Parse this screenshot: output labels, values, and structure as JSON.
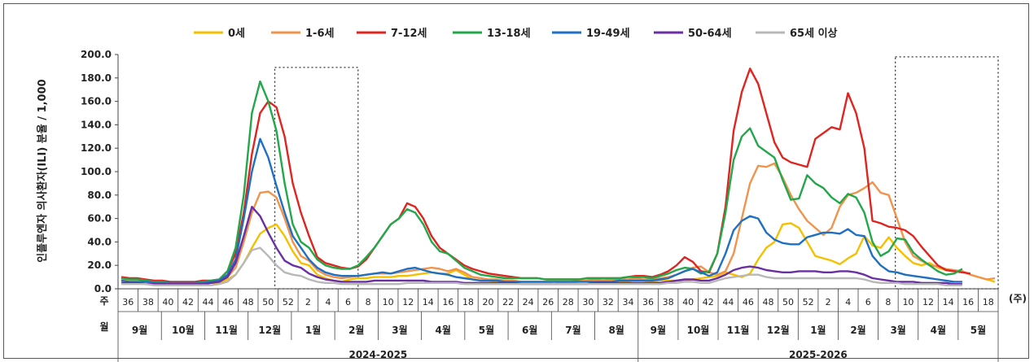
{
  "chart_data": {
    "type": "line",
    "ylabel": "인플루엔자 의사환자(ILI) 분율 / 1,000",
    "ylim": [
      0,
      200
    ],
    "yticks": [
      "0.0",
      "20.0",
      "40.0",
      "60.0",
      "80.0",
      "100.0",
      "120.0",
      "140.0",
      "160.0",
      "180.0",
      "200.0"
    ],
    "x_unit": "(주)",
    "x_row_label": "주",
    "month_row_label": "월",
    "week_labels": [
      "36",
      "38",
      "40",
      "42",
      "44",
      "46",
      "48",
      "50",
      "52",
      "2",
      "4",
      "6",
      "8",
      "10",
      "12",
      "14",
      "16",
      "18",
      "20",
      "22",
      "24",
      "26",
      "28",
      "30",
      "32",
      "34",
      "36",
      "38",
      "40",
      "42",
      "44",
      "46",
      "48",
      "50",
      "52",
      "2",
      "4",
      "6",
      "8",
      "10",
      "12",
      "14",
      "16",
      "18"
    ],
    "months_2024": [
      "9월",
      "10월",
      "11월",
      "12월",
      "1월",
      "2월",
      "3월",
      "4월",
      "5월",
      "6월",
      "7월",
      "8월"
    ],
    "months_2025": [
      "9월",
      "10월",
      "11월",
      "12월",
      "1월",
      "2월",
      "3월",
      "4월",
      "5월"
    ],
    "seasons": [
      "2024-2025",
      "2025-2026"
    ],
    "legend_position": "top",
    "series": [
      {
        "name": "0세",
        "color": "#f5c000",
        "values": [
          8,
          6,
          6,
          5,
          5,
          5,
          4,
          4,
          4,
          4,
          5,
          5,
          5,
          8,
          12,
          22,
          35,
          47,
          52,
          55,
          45,
          32,
          22,
          20,
          12,
          9,
          7,
          6,
          8,
          9,
          9,
          10,
          10,
          10,
          11,
          11,
          12,
          13,
          14,
          13,
          13,
          16,
          12,
          8,
          7,
          7,
          6,
          5,
          5,
          5,
          5,
          5,
          5,
          4,
          5,
          5,
          6,
          6,
          7,
          6,
          7,
          6,
          6,
          8,
          7,
          6,
          7,
          7,
          7,
          7,
          8,
          9,
          10,
          11,
          14,
          12,
          10,
          13,
          25,
          35,
          40,
          55,
          56,
          52,
          40,
          28,
          26,
          24,
          21,
          26,
          30,
          45,
          37,
          35,
          44,
          35,
          28,
          22,
          20,
          22,
          18,
          16,
          15,
          15,
          12,
          10,
          8,
          6
        ]
      },
      {
        "name": "1-6세",
        "color": "#f0944d",
        "values": [
          9,
          8,
          8,
          7,
          6,
          6,
          5,
          5,
          5,
          5,
          5,
          6,
          6,
          10,
          18,
          40,
          65,
          82,
          83,
          78,
          60,
          40,
          28,
          24,
          16,
          12,
          10,
          9,
          10,
          11,
          12,
          13,
          13,
          13,
          14,
          15,
          16,
          17,
          18,
          17,
          15,
          17,
          14,
          10,
          9,
          8,
          8,
          7,
          7,
          6,
          6,
          6,
          6,
          6,
          6,
          6,
          7,
          7,
          8,
          7,
          8,
          8,
          8,
          9,
          8,
          8,
          9,
          10,
          12,
          15,
          18,
          19,
          14,
          12,
          15,
          30,
          60,
          90,
          105,
          104,
          107,
          95,
          80,
          68,
          58,
          52,
          46,
          52,
          70,
          80,
          82,
          86,
          91,
          82,
          80,
          60,
          40,
          28,
          24,
          20,
          19,
          17,
          16,
          15,
          12,
          10,
          8,
          9
        ]
      },
      {
        "name": "7-12세",
        "color": "#e0241f",
        "values": [
          10,
          9,
          9,
          8,
          7,
          7,
          6,
          6,
          6,
          6,
          7,
          7,
          8,
          15,
          30,
          65,
          115,
          150,
          160,
          155,
          130,
          90,
          65,
          45,
          27,
          22,
          20,
          18,
          17,
          19,
          25,
          35,
          45,
          55,
          60,
          73,
          70,
          60,
          45,
          35,
          30,
          25,
          20,
          17,
          15,
          13,
          12,
          11,
          10,
          9,
          9,
          9,
          8,
          8,
          8,
          8,
          8,
          9,
          9,
          9,
          9,
          9,
          10,
          11,
          11,
          10,
          12,
          15,
          20,
          27,
          23,
          15,
          14,
          30,
          70,
          135,
          168,
          188,
          175,
          150,
          125,
          112,
          108,
          106,
          104,
          128,
          133,
          138,
          136,
          167,
          150,
          120,
          58,
          56,
          53,
          52,
          50,
          45,
          36,
          28,
          20,
          16,
          15,
          14,
          13
        ]
      },
      {
        "name": "13-18세",
        "color": "#22a84a",
        "values": [
          9,
          8,
          8,
          7,
          6,
          6,
          5,
          5,
          5,
          5,
          6,
          7,
          8,
          15,
          35,
          80,
          150,
          177,
          160,
          135,
          90,
          55,
          40,
          35,
          25,
          20,
          18,
          17,
          17,
          20,
          27,
          35,
          45,
          55,
          60,
          68,
          65,
          55,
          40,
          32,
          30,
          24,
          18,
          15,
          12,
          11,
          10,
          9,
          9,
          9,
          9,
          9,
          8,
          8,
          8,
          8,
          8,
          9,
          9,
          9,
          9,
          9,
          10,
          10,
          10,
          9,
          11,
          13,
          16,
          18,
          17,
          13,
          15,
          30,
          65,
          110,
          130,
          137,
          122,
          117,
          112,
          93,
          76,
          77,
          97,
          90,
          86,
          78,
          73,
          81,
          78,
          65,
          40,
          28,
          32,
          43,
          42,
          31,
          25,
          20,
          15,
          12,
          13,
          17
        ]
      },
      {
        "name": "19-49세",
        "color": "#1f6fc2",
        "values": [
          7,
          6,
          6,
          6,
          5,
          5,
          5,
          5,
          5,
          5,
          5,
          6,
          7,
          12,
          25,
          60,
          100,
          128,
          112,
          88,
          65,
          45,
          35,
          25,
          18,
          14,
          12,
          11,
          11,
          11,
          12,
          13,
          14,
          13,
          15,
          17,
          18,
          16,
          14,
          13,
          12,
          10,
          9,
          8,
          7,
          7,
          7,
          6,
          6,
          6,
          6,
          6,
          6,
          6,
          6,
          6,
          6,
          6,
          6,
          6,
          6,
          7,
          7,
          7,
          7,
          7,
          8,
          9,
          12,
          15,
          17,
          14,
          11,
          14,
          30,
          50,
          58,
          62,
          60,
          48,
          42,
          39,
          38,
          38,
          44,
          46,
          48,
          48,
          47,
          51,
          46,
          45,
          28,
          20,
          15,
          14,
          12,
          11,
          10,
          9,
          8,
          7,
          6,
          6
        ]
      },
      {
        "name": "50-64세",
        "color": "#6a2fa3",
        "values": [
          5,
          5,
          5,
          4,
          4,
          4,
          4,
          4,
          4,
          4,
          4,
          5,
          6,
          10,
          22,
          45,
          70,
          62,
          48,
          35,
          24,
          20,
          18,
          13,
          10,
          8,
          7,
          6,
          6,
          6,
          6,
          7,
          7,
          7,
          7,
          7,
          7,
          7,
          6,
          6,
          6,
          6,
          5,
          5,
          5,
          5,
          5,
          5,
          5,
          4,
          4,
          4,
          4,
          4,
          4,
          4,
          4,
          4,
          5,
          5,
          5,
          5,
          5,
          5,
          5,
          5,
          5,
          6,
          7,
          8,
          8,
          7,
          7,
          9,
          12,
          16,
          18,
          19,
          18,
          16,
          15,
          14,
          14,
          15,
          15,
          15,
          14,
          14,
          15,
          15,
          14,
          12,
          9,
          8,
          7,
          6,
          6,
          6,
          5,
          5,
          5,
          5,
          4,
          4
        ]
      },
      {
        "name": "65세 이상",
        "color": "#b8b8b8",
        "values": [
          4,
          4,
          4,
          4,
          3,
          3,
          3,
          3,
          3,
          3,
          3,
          3,
          4,
          6,
          12,
          22,
          33,
          35,
          28,
          20,
          14,
          12,
          11,
          8,
          6,
          5,
          5,
          4,
          4,
          4,
          4,
          4,
          4,
          4,
          4,
          5,
          5,
          5,
          5,
          5,
          5,
          5,
          4,
          4,
          4,
          4,
          4,
          4,
          4,
          4,
          4,
          4,
          4,
          4,
          4,
          4,
          4,
          4,
          4,
          4,
          4,
          4,
          4,
          4,
          4,
          4,
          4,
          5,
          5,
          6,
          6,
          5,
          5,
          7,
          9,
          10,
          11,
          12,
          12,
          10,
          9,
          9,
          9,
          9,
          9,
          9,
          9,
          9,
          9,
          9,
          9,
          8,
          6,
          5,
          5,
          5,
          4,
          4,
          4,
          4,
          4,
          3,
          3,
          3
        ]
      }
    ]
  }
}
